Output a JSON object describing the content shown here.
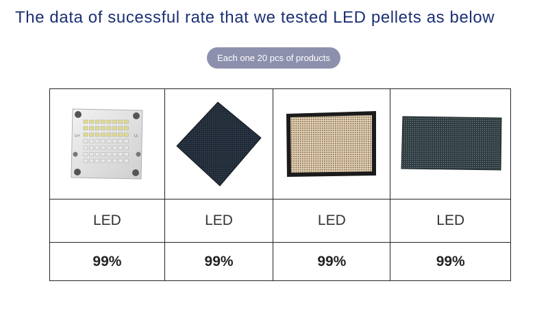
{
  "header": {
    "title": "The data of sucessful rate that we tested LED pellets as below",
    "note": "Each one 20 pcs of products"
  },
  "table": {
    "columns": [
      {
        "name": "LED",
        "rate": "99%",
        "image": "cob-led-board"
      },
      {
        "name": "LED",
        "rate": "99%",
        "image": "led-matrix-panel-diamond"
      },
      {
        "name": "LED",
        "rate": "99%",
        "image": "led-grid-panel-framed"
      },
      {
        "name": "LED",
        "rate": "99%",
        "image": "led-display-module"
      }
    ]
  },
  "board": {
    "pos_label": "U+",
    "neg_label": "U-"
  }
}
